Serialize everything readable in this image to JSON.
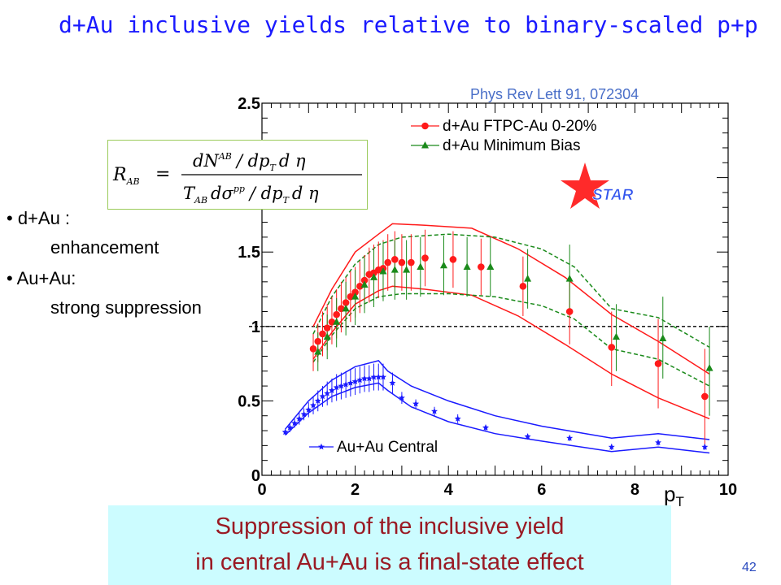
{
  "slide": {
    "title": "d+Au inclusive yields relative to binary-scaled p+p",
    "citation": "Phys Rev Lett 91, 072304",
    "slide_number": "42",
    "bullets": [
      {
        "text": "• d+Au :"
      },
      {
        "text": "enhancement"
      },
      {
        "text": "• Au+Au:"
      },
      {
        "text": "strong suppression"
      }
    ],
    "formula": {
      "lhs": "R",
      "lhs_sub": "AB",
      "num_text": "dN",
      "num_sup": "AB",
      "num_rest": "/ dp",
      "num_sub": "T",
      "num_tail": "d η",
      "den_text": "T",
      "den_sub": "AB",
      "den_mid": "dσ",
      "den_sup": "pp",
      "den_rest": "/ dp",
      "den_sub2": "T",
      "den_tail": "d η"
    },
    "conclusion": [
      "Suppression of the inclusive yield",
      "in central Au+Au is a final-state effect"
    ],
    "colors": {
      "title": "#1a1aff",
      "dau_ftpc": "#ff1a1a",
      "dau_mb": "#1a8a1a",
      "auau": "#1a1aff",
      "star": "#ff2a2a",
      "conclusion_bg": "#ccfcff",
      "conclusion_text": "#9a1a24"
    }
  },
  "chart_data": {
    "type": "scatter",
    "xlabel": "p",
    "xlabel_sub": "T",
    "xlim": [
      0,
      10
    ],
    "ylim": [
      0,
      2.5
    ],
    "x_ticks": [
      "0",
      "2",
      "4",
      "6",
      "8",
      "10"
    ],
    "y_ticks": [
      "0",
      "0.5",
      "1",
      "1.5",
      "2.5"
    ],
    "reference_line_y": 1.0,
    "legend_position": "top-right",
    "logo_text": "STAR",
    "series": [
      {
        "name": "d+Au FTPC-Au 0-20%",
        "marker": "circle",
        "color": "#ff1a1a",
        "points": [
          {
            "x": 1.1,
            "y": 0.85,
            "lo": 0.7,
            "hi": 0.95
          },
          {
            "x": 1.2,
            "y": 0.9,
            "lo": 0.76,
            "hi": 1.02
          },
          {
            "x": 1.3,
            "y": 0.95,
            "lo": 0.8,
            "hi": 1.1
          },
          {
            "x": 1.4,
            "y": 0.99,
            "lo": 0.84,
            "hi": 1.15
          },
          {
            "x": 1.5,
            "y": 1.03,
            "lo": 0.88,
            "hi": 1.2
          },
          {
            "x": 1.6,
            "y": 1.08,
            "lo": 0.92,
            "hi": 1.25
          },
          {
            "x": 1.7,
            "y": 1.12,
            "lo": 0.96,
            "hi": 1.3
          },
          {
            "x": 1.8,
            "y": 1.16,
            "lo": 1.0,
            "hi": 1.33
          },
          {
            "x": 1.9,
            "y": 1.2,
            "lo": 1.03,
            "hi": 1.37
          },
          {
            "x": 2.0,
            "y": 1.23,
            "lo": 1.06,
            "hi": 1.4
          },
          {
            "x": 2.1,
            "y": 1.27,
            "lo": 1.09,
            "hi": 1.44
          },
          {
            "x": 2.2,
            "y": 1.31,
            "lo": 1.12,
            "hi": 1.48
          },
          {
            "x": 2.3,
            "y": 1.35,
            "lo": 1.16,
            "hi": 1.53
          },
          {
            "x": 2.4,
            "y": 1.36,
            "lo": 1.17,
            "hi": 1.55
          },
          {
            "x": 2.5,
            "y": 1.38,
            "lo": 1.19,
            "hi": 1.57
          },
          {
            "x": 2.6,
            "y": 1.39,
            "lo": 1.2,
            "hi": 1.58
          },
          {
            "x": 2.7,
            "y": 1.43,
            "lo": 1.24,
            "hi": 1.62
          },
          {
            "x": 2.85,
            "y": 1.45,
            "lo": 1.26,
            "hi": 1.64
          },
          {
            "x": 3.0,
            "y": 1.43,
            "lo": 1.24,
            "hi": 1.62
          },
          {
            "x": 3.2,
            "y": 1.43,
            "lo": 1.24,
            "hi": 1.62
          },
          {
            "x": 3.5,
            "y": 1.46,
            "lo": 1.27,
            "hi": 1.65
          },
          {
            "x": 4.1,
            "y": 1.45,
            "lo": 1.26,
            "hi": 1.64
          },
          {
            "x": 4.7,
            "y": 1.4,
            "lo": 1.21,
            "hi": 1.59
          },
          {
            "x": 5.6,
            "y": 1.27,
            "lo": 1.07,
            "hi": 1.47
          },
          {
            "x": 6.6,
            "y": 1.1,
            "lo": 0.88,
            "hi": 1.32
          },
          {
            "x": 7.5,
            "y": 0.86,
            "lo": 0.6,
            "hi": 1.1
          },
          {
            "x": 8.5,
            "y": 0.75,
            "lo": 0.45,
            "hi": 1.05
          },
          {
            "x": 9.5,
            "y": 0.53,
            "lo": 0.2,
            "hi": 0.85
          }
        ]
      },
      {
        "name": "d+Au Minimum Bias",
        "marker": "triangle",
        "color": "#1a8a1a",
        "points": [
          {
            "x": 1.2,
            "y": 0.83,
            "lo": 0.7,
            "hi": 0.96
          },
          {
            "x": 1.4,
            "y": 0.93,
            "lo": 0.78,
            "hi": 1.08
          },
          {
            "x": 1.6,
            "y": 1.03,
            "lo": 0.86,
            "hi": 1.19
          },
          {
            "x": 1.8,
            "y": 1.12,
            "lo": 0.94,
            "hi": 1.3
          },
          {
            "x": 2.0,
            "y": 1.2,
            "lo": 1.01,
            "hi": 1.38
          },
          {
            "x": 2.2,
            "y": 1.28,
            "lo": 1.09,
            "hi": 1.46
          },
          {
            "x": 2.4,
            "y": 1.33,
            "lo": 1.13,
            "hi": 1.52
          },
          {
            "x": 2.6,
            "y": 1.37,
            "lo": 1.17,
            "hi": 1.57
          },
          {
            "x": 2.85,
            "y": 1.38,
            "lo": 1.18,
            "hi": 1.58
          },
          {
            "x": 3.1,
            "y": 1.38,
            "lo": 1.18,
            "hi": 1.58
          },
          {
            "x": 3.4,
            "y": 1.4,
            "lo": 1.2,
            "hi": 1.6
          },
          {
            "x": 3.9,
            "y": 1.41,
            "lo": 1.21,
            "hi": 1.61
          },
          {
            "x": 4.4,
            "y": 1.4,
            "lo": 1.2,
            "hi": 1.6
          },
          {
            "x": 4.9,
            "y": 1.4,
            "lo": 1.2,
            "hi": 1.6
          },
          {
            "x": 5.7,
            "y": 1.32,
            "lo": 1.12,
            "hi": 1.52
          },
          {
            "x": 6.6,
            "y": 1.32,
            "lo": 1.1,
            "hi": 1.55
          },
          {
            "x": 7.6,
            "y": 0.93,
            "lo": 0.7,
            "hi": 1.15
          },
          {
            "x": 8.6,
            "y": 0.92,
            "lo": 0.65,
            "hi": 1.2
          },
          {
            "x": 9.6,
            "y": 0.72,
            "lo": 0.4,
            "hi": 1.0
          }
        ]
      },
      {
        "name": "Au+Au Central",
        "marker": "star",
        "color": "#1a1aff",
        "points": [
          {
            "x": 0.5,
            "y": 0.29,
            "lo": 0.27,
            "hi": 0.31
          },
          {
            "x": 0.6,
            "y": 0.32,
            "lo": 0.29,
            "hi": 0.35
          },
          {
            "x": 0.7,
            "y": 0.35,
            "lo": 0.32,
            "hi": 0.38
          },
          {
            "x": 0.8,
            "y": 0.38,
            "lo": 0.34,
            "hi": 0.42
          },
          {
            "x": 0.9,
            "y": 0.41,
            "lo": 0.37,
            "hi": 0.45
          },
          {
            "x": 1.0,
            "y": 0.44,
            "lo": 0.39,
            "hi": 0.49
          },
          {
            "x": 1.1,
            "y": 0.47,
            "lo": 0.41,
            "hi": 0.53
          },
          {
            "x": 1.2,
            "y": 0.5,
            "lo": 0.43,
            "hi": 0.57
          },
          {
            "x": 1.3,
            "y": 0.53,
            "lo": 0.46,
            "hi": 0.6
          },
          {
            "x": 1.4,
            "y": 0.55,
            "lo": 0.47,
            "hi": 0.63
          },
          {
            "x": 1.5,
            "y": 0.57,
            "lo": 0.49,
            "hi": 0.65
          },
          {
            "x": 1.6,
            "y": 0.59,
            "lo": 0.5,
            "hi": 0.68
          },
          {
            "x": 1.7,
            "y": 0.6,
            "lo": 0.51,
            "hi": 0.69
          },
          {
            "x": 1.8,
            "y": 0.61,
            "lo": 0.52,
            "hi": 0.7
          },
          {
            "x": 1.9,
            "y": 0.62,
            "lo": 0.53,
            "hi": 0.71
          },
          {
            "x": 2.0,
            "y": 0.63,
            "lo": 0.54,
            "hi": 0.72
          },
          {
            "x": 2.1,
            "y": 0.64,
            "lo": 0.55,
            "hi": 0.73
          },
          {
            "x": 2.2,
            "y": 0.65,
            "lo": 0.56,
            "hi": 0.74
          },
          {
            "x": 2.3,
            "y": 0.65,
            "lo": 0.56,
            "hi": 0.74
          },
          {
            "x": 2.4,
            "y": 0.66,
            "lo": 0.57,
            "hi": 0.75
          },
          {
            "x": 2.5,
            "y": 0.66,
            "lo": 0.57,
            "hi": 0.75
          },
          {
            "x": 2.6,
            "y": 0.66,
            "lo": 0.57,
            "hi": 0.75
          },
          {
            "x": 2.8,
            "y": 0.62,
            "lo": 0.55,
            "hi": 0.69
          },
          {
            "x": 3.0,
            "y": 0.52,
            "lo": 0.48,
            "hi": 0.56
          },
          {
            "x": 3.3,
            "y": 0.48,
            "lo": 0.45,
            "hi": 0.51
          },
          {
            "x": 3.7,
            "y": 0.43,
            "lo": 0.4,
            "hi": 0.46
          },
          {
            "x": 4.2,
            "y": 0.38,
            "lo": 0.35,
            "hi": 0.41
          },
          {
            "x": 4.8,
            "y": 0.32,
            "lo": 0.3,
            "hi": 0.34
          },
          {
            "x": 5.7,
            "y": 0.26,
            "lo": 0.24,
            "hi": 0.28
          },
          {
            "x": 6.6,
            "y": 0.25,
            "lo": 0.23,
            "hi": 0.27
          },
          {
            "x": 7.5,
            "y": 0.19,
            "lo": 0.17,
            "hi": 0.21
          },
          {
            "x": 8.5,
            "y": 0.22,
            "lo": 0.2,
            "hi": 0.24
          },
          {
            "x": 9.5,
            "y": 0.19,
            "lo": 0.17,
            "hi": 0.21
          }
        ]
      }
    ],
    "bands": [
      {
        "color": "#ff1a1a",
        "style": "solid",
        "upper": [
          [
            1.1,
            1.0
          ],
          [
            1.5,
            1.25
          ],
          [
            2.0,
            1.5
          ],
          [
            2.5,
            1.62
          ],
          [
            2.8,
            1.69
          ],
          [
            3.5,
            1.68
          ],
          [
            4.5,
            1.66
          ],
          [
            5.5,
            1.52
          ],
          [
            6.5,
            1.33
          ],
          [
            7.5,
            1.08
          ],
          [
            8.5,
            0.9
          ],
          [
            9.6,
            0.68
          ]
        ],
        "lower": [
          [
            1.1,
            0.78
          ],
          [
            1.5,
            0.96
          ],
          [
            2.0,
            1.15
          ],
          [
            2.5,
            1.24
          ],
          [
            2.8,
            1.27
          ],
          [
            3.5,
            1.25
          ],
          [
            4.5,
            1.21
          ],
          [
            5.5,
            1.07
          ],
          [
            6.5,
            0.88
          ],
          [
            7.5,
            0.68
          ],
          [
            8.5,
            0.52
          ],
          [
            9.6,
            0.38
          ]
        ]
      },
      {
        "color": "#1a8a1a",
        "style": "dashed",
        "upper": [
          [
            1.1,
            0.95
          ],
          [
            1.5,
            1.2
          ],
          [
            2.0,
            1.42
          ],
          [
            2.5,
            1.55
          ],
          [
            3.0,
            1.6
          ],
          [
            4.0,
            1.62
          ],
          [
            5.0,
            1.6
          ],
          [
            6.0,
            1.52
          ],
          [
            6.7,
            1.4
          ],
          [
            7.5,
            1.12
          ],
          [
            8.5,
            1.06
          ],
          [
            9.6,
            0.86
          ]
        ],
        "lower": [
          [
            1.1,
            0.76
          ],
          [
            1.5,
            0.94
          ],
          [
            2.0,
            1.12
          ],
          [
            2.5,
            1.2
          ],
          [
            3.0,
            1.22
          ],
          [
            4.0,
            1.22
          ],
          [
            5.0,
            1.2
          ],
          [
            6.0,
            1.14
          ],
          [
            6.7,
            1.05
          ],
          [
            7.5,
            0.85
          ],
          [
            8.5,
            0.78
          ],
          [
            9.6,
            0.6
          ]
        ]
      },
      {
        "color": "#1a1aff",
        "style": "solid",
        "upper": [
          [
            0.5,
            0.31
          ],
          [
            1.0,
            0.5
          ],
          [
            1.5,
            0.64
          ],
          [
            2.0,
            0.73
          ],
          [
            2.5,
            0.77
          ],
          [
            2.7,
            0.7
          ],
          [
            3.2,
            0.6
          ],
          [
            4.0,
            0.5
          ],
          [
            5.0,
            0.4
          ],
          [
            6.0,
            0.33
          ],
          [
            7.5,
            0.25
          ],
          [
            8.5,
            0.28
          ],
          [
            9.6,
            0.24
          ]
        ],
        "lower": [
          [
            0.5,
            0.27
          ],
          [
            1.0,
            0.42
          ],
          [
            1.5,
            0.53
          ],
          [
            2.0,
            0.59
          ],
          [
            2.5,
            0.62
          ],
          [
            2.7,
            0.57
          ],
          [
            3.2,
            0.46
          ],
          [
            4.0,
            0.36
          ],
          [
            5.0,
            0.28
          ],
          [
            6.0,
            0.23
          ],
          [
            7.5,
            0.16
          ],
          [
            8.5,
            0.19
          ],
          [
            9.6,
            0.15
          ]
        ]
      }
    ]
  }
}
